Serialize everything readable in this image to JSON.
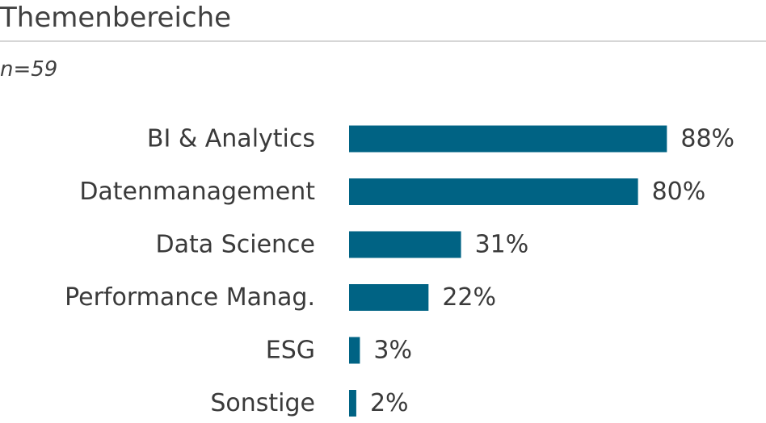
{
  "title": "Themenbereiche",
  "subtitle": "n=59",
  "colors": {
    "bar": "#006384",
    "rule": "#d6d6d6",
    "text": "#3a3a3a"
  },
  "chart_data": {
    "type": "bar",
    "orientation": "horizontal",
    "categories": [
      "BI & Analytics",
      "Datenmanagement",
      "Data Science",
      "Performance Manag.",
      "ESG",
      "Sonstige"
    ],
    "values": [
      88,
      80,
      31,
      22,
      3,
      2
    ],
    "value_labels": [
      "88%",
      "80%",
      "31%",
      "22%",
      "3%",
      "2%"
    ],
    "unit": "%",
    "xlim": [
      0,
      100
    ],
    "grid": false,
    "legend": "none"
  }
}
